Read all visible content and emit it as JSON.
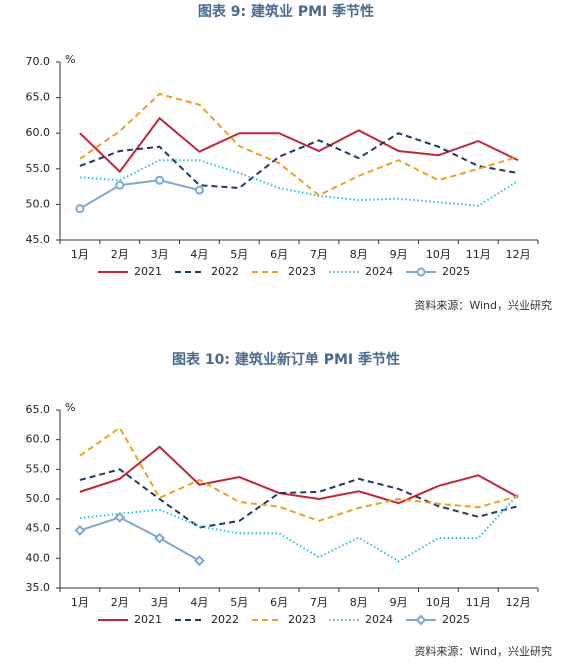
{
  "chart_data": [
    {
      "type": "line",
      "title": "图表 9:   建筑业 PMI 季节性",
      "unit": "%",
      "categories": [
        "1月",
        "2月",
        "3月",
        "4月",
        "5月",
        "6月",
        "7月",
        "8月",
        "9月",
        "10月",
        "11月",
        "12月"
      ],
      "ylim": [
        45,
        70
      ],
      "yticks": [
        {
          "value": 45,
          "label": "45.0"
        },
        {
          "value": 50,
          "label": "50.0"
        },
        {
          "value": 55,
          "label": "55.0"
        },
        {
          "value": 60,
          "label": "60.0"
        },
        {
          "value": 65,
          "label": "65.0"
        },
        {
          "value": 70,
          "label": "70.0"
        }
      ],
      "series": [
        {
          "name": "2021",
          "color": "#c0263a",
          "style": "solid",
          "values": [
            60.0,
            54.6,
            62.1,
            57.4,
            60.0,
            60.0,
            57.5,
            60.4,
            57.5,
            56.9,
            58.9,
            56.2
          ]
        },
        {
          "name": "2022",
          "color": "#1f3864",
          "style": "dashed",
          "values": [
            55.4,
            57.5,
            58.1,
            52.7,
            52.3,
            56.7,
            59.0,
            56.5,
            60.0,
            58.1,
            55.4,
            54.4
          ]
        },
        {
          "name": "2023",
          "color": "#f0a020",
          "style": "dashed",
          "values": [
            56.4,
            60.3,
            65.5,
            64.0,
            58.2,
            55.8,
            51.3,
            54.0,
            56.2,
            53.4,
            55.0,
            56.7
          ]
        },
        {
          "name": "2024",
          "color": "#2bc0d8",
          "style": "dotted",
          "values": [
            53.8,
            53.4,
            56.2,
            56.2,
            54.4,
            52.3,
            51.2,
            50.6,
            50.8,
            50.3,
            49.8,
            53.3
          ]
        },
        {
          "name": "2025",
          "color": "#7fa7d0",
          "style": "solid",
          "marker": "circle",
          "values": [
            49.4,
            52.7,
            53.4,
            52.0,
            null,
            null,
            null,
            null,
            null,
            null,
            null,
            null
          ]
        }
      ],
      "source": "资料来源：Wind，兴业研究"
    },
    {
      "type": "line",
      "title": "图表 10:  建筑业新订单 PMI 季节性",
      "unit": "%",
      "categories": [
        "1月",
        "2月",
        "3月",
        "4月",
        "5月",
        "6月",
        "7月",
        "8月",
        "9月",
        "10月",
        "11月",
        "12月"
      ],
      "ylim": [
        35,
        65
      ],
      "yticks": [
        {
          "value": 35,
          "label": "35.0"
        },
        {
          "value": 40,
          "label": "40.0"
        },
        {
          "value": 45,
          "label": "45.0"
        },
        {
          "value": 50,
          "label": "50.0"
        },
        {
          "value": 55,
          "label": "55.0"
        },
        {
          "value": 60,
          "label": "60.0"
        },
        {
          "value": 65,
          "label": "65.0"
        }
      ],
      "series": [
        {
          "name": "2021",
          "color": "#c0263a",
          "style": "solid",
          "values": [
            51.2,
            53.4,
            58.8,
            52.4,
            53.7,
            51.0,
            50.0,
            51.3,
            49.3,
            52.2,
            54.0,
            50.3
          ]
        },
        {
          "name": "2022",
          "color": "#1f3864",
          "style": "dashed",
          "values": [
            53.2,
            55.0,
            50.0,
            45.2,
            46.3,
            51.0,
            51.2,
            53.4,
            51.7,
            48.8,
            47.0,
            48.8
          ]
        },
        {
          "name": "2023",
          "color": "#f0a020",
          "style": "dashed",
          "values": [
            57.3,
            62.0,
            50.2,
            53.2,
            49.5,
            48.7,
            46.3,
            48.5,
            50.0,
            49.2,
            48.6,
            50.5
          ]
        },
        {
          "name": "2024",
          "color": "#2bc0d8",
          "style": "dotted",
          "values": [
            46.8,
            47.5,
            48.2,
            45.4,
            44.2,
            44.2,
            40.2,
            43.5,
            39.5,
            43.4,
            43.4,
            50.8
          ]
        },
        {
          "name": "2025",
          "color": "#7fa7d0",
          "style": "solid",
          "marker": "diamond",
          "values": [
            44.7,
            46.9,
            43.4,
            39.6,
            null,
            null,
            null,
            null,
            null,
            null,
            null,
            null
          ]
        }
      ],
      "source": "资料来源：Wind，兴业研究"
    }
  ]
}
